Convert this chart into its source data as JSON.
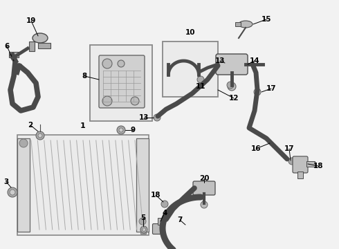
{
  "bg_color": "#f2f2f2",
  "line_color": "#4a4a4a",
  "gray_fill": "#c8c8c8",
  "light_fill": "#e8e8e8",
  "white_fill": "#ffffff",
  "box_stroke": "#888888"
}
